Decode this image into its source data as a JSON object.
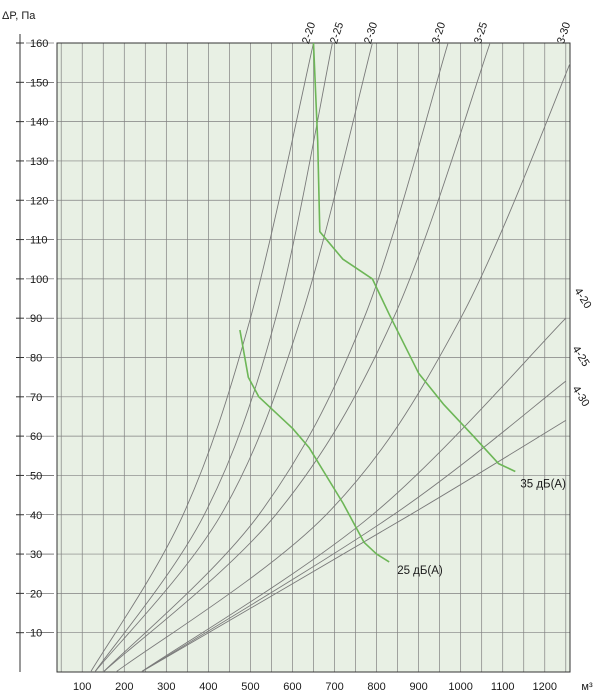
{
  "chart_data": {
    "type": "line",
    "ylabel": "ΔP, Па",
    "xlabel": "м³",
    "xlim": [
      40,
      1260
    ],
    "ylim": [
      0,
      160
    ],
    "x_ticks": [
      100,
      200,
      300,
      400,
      500,
      600,
      700,
      800,
      900,
      1000,
      1100,
      1200
    ],
    "y_ticks": [
      10,
      20,
      30,
      40,
      50,
      60,
      70,
      80,
      90,
      100,
      110,
      120,
      130,
      140,
      150,
      160
    ],
    "grid": true,
    "colors": {
      "plot_background": "#e8f0e4",
      "grid": "#808080",
      "curves": "#7a7a7a",
      "noise_lines": "#6db657",
      "axis": "#333333"
    },
    "characteristic_curves": [
      {
        "name": "2-20",
        "points": [
          [
            120,
            0
          ],
          [
            340,
            40
          ],
          [
            500,
            90
          ],
          [
            650,
            160
          ]
        ]
      },
      {
        "name": "2-25",
        "points": [
          [
            130,
            0
          ],
          [
            390,
            40
          ],
          [
            560,
            90
          ],
          [
            695,
            160
          ]
        ]
      },
      {
        "name": "2-30",
        "points": [
          [
            130,
            0
          ],
          [
            430,
            40
          ],
          [
            620,
            90
          ],
          [
            790,
            160
          ]
        ]
      },
      {
        "name": "3-20",
        "points": [
          [
            150,
            0
          ],
          [
            520,
            40
          ],
          [
            770,
            90
          ],
          [
            970,
            160
          ]
        ]
      },
      {
        "name": "3-25",
        "points": [
          [
            150,
            0
          ],
          [
            560,
            40
          ],
          [
            840,
            90
          ],
          [
            1070,
            160
          ]
        ]
      },
      {
        "name": "3-30",
        "points": [
          [
            180,
            0
          ],
          [
            680,
            40
          ],
          [
            1000,
            90
          ],
          [
            1280,
            160
          ]
        ]
      },
      {
        "name": "4-20",
        "points": [
          [
            240,
            0
          ],
          [
            790,
            40
          ],
          [
            1250,
            90
          ]
        ]
      },
      {
        "name": "4-25",
        "points": [
          [
            240,
            0
          ],
          [
            840,
            40
          ],
          [
            1250,
            74
          ]
        ]
      },
      {
        "name": "4-30",
        "points": [
          [
            240,
            0
          ],
          [
            880,
            40
          ],
          [
            1250,
            64
          ]
        ]
      }
    ],
    "series": [
      {
        "name": "25 дБ(А)",
        "points": [
          [
            475,
            87
          ],
          [
            495,
            75
          ],
          [
            520,
            70
          ],
          [
            600,
            62
          ],
          [
            640,
            57
          ],
          [
            720,
            43
          ],
          [
            770,
            33
          ],
          [
            800,
            30
          ],
          [
            830,
            28
          ]
        ]
      },
      {
        "name": "35 дБ(А)",
        "points": [
          [
            650,
            160
          ],
          [
            660,
            135
          ],
          [
            665,
            112
          ],
          [
            720,
            105
          ],
          [
            790,
            100
          ],
          [
            830,
            91
          ],
          [
            900,
            76
          ],
          [
            960,
            68
          ],
          [
            1030,
            60
          ],
          [
            1090,
            53
          ],
          [
            1130,
            51
          ]
        ]
      }
    ]
  }
}
